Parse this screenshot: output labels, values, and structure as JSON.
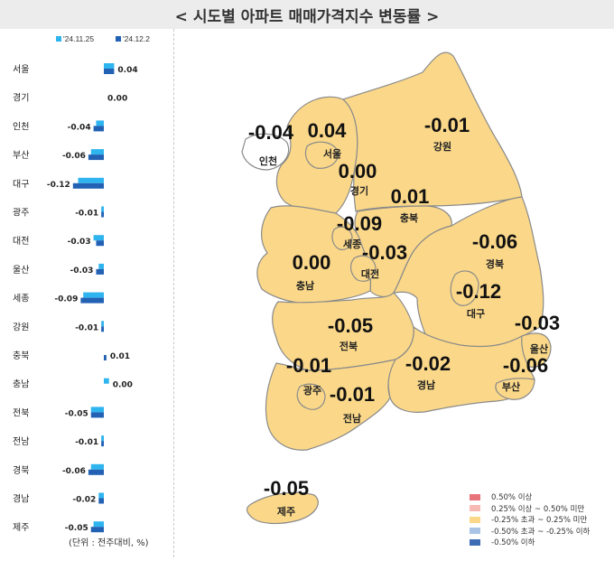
{
  "title": "< 시도별 아파트 매매가격지수 변동률 >",
  "unit_note": "(단위 : 전주대비, %)",
  "colors": {
    "prev": "#2eb4ee",
    "curr": "#2261b4",
    "region_fill": "#fbd889",
    "region_stroke": "#8a8a8a",
    "incheon_fill": "#ffffff"
  },
  "chart_data": {
    "type": "bar",
    "orientation": "horizontal",
    "series": [
      {
        "name": "'24.11.25",
        "values": [
          0.04,
          0.0,
          -0.03,
          -0.05,
          -0.1,
          -0.01,
          -0.04,
          -0.02,
          -0.08,
          -0.01,
          0.0,
          0.02,
          -0.05,
          -0.01,
          -0.05,
          -0.02,
          -0.04
        ]
      },
      {
        "name": "'24.12.2",
        "values": [
          0.04,
          0.0,
          -0.04,
          -0.06,
          -0.12,
          -0.01,
          -0.03,
          -0.03,
          -0.09,
          -0.01,
          0.01,
          0.0,
          -0.05,
          -0.01,
          -0.06,
          -0.02,
          -0.05
        ]
      }
    ],
    "categories": [
      "서울",
      "경기",
      "인천",
      "부산",
      "대구",
      "광주",
      "대전",
      "울산",
      "세종",
      "강원",
      "충북",
      "충남",
      "전북",
      "전남",
      "경북",
      "경남",
      "제주"
    ],
    "data_labels": [
      "0.04",
      "0.00",
      "-0.04",
      "-0.06",
      "-0.12",
      "-0.01",
      "-0.03",
      "-0.03",
      "-0.09",
      "-0.01",
      "0.01",
      "0.00",
      "-0.05",
      "-0.01",
      "-0.06",
      "-0.02",
      "-0.05"
    ]
  },
  "map_labels": [
    {
      "region": "인천",
      "value": "-0.04"
    },
    {
      "region": "서울",
      "value": "0.04"
    },
    {
      "region": "경기",
      "value": "0.00"
    },
    {
      "region": "강원",
      "value": "-0.01"
    },
    {
      "region": "충북",
      "value": "0.01"
    },
    {
      "region": "세종",
      "value": "-0.09"
    },
    {
      "region": "대전",
      "value": "-0.03"
    },
    {
      "region": "충남",
      "value": "0.00"
    },
    {
      "region": "경북",
      "value": "-0.06"
    },
    {
      "region": "대구",
      "value": "-0.12"
    },
    {
      "region": "전북",
      "value": "-0.05"
    },
    {
      "region": "울산",
      "value": "-0.03"
    },
    {
      "region": "광주",
      "value": "-0.01"
    },
    {
      "region": "경남",
      "value": "-0.02"
    },
    {
      "region": "부산",
      "value": "-0.06"
    },
    {
      "region": "전남",
      "value": "-0.01"
    },
    {
      "region": "제주",
      "value": "-0.05"
    }
  ],
  "legend": [
    {
      "label": "0.50% 이상",
      "color": "#e8737a"
    },
    {
      "label": "0.25% 이상 ~ 0.50% 미만",
      "color": "#f6b9b4"
    },
    {
      "label": "-0.25% 초과 ~ 0.25% 미만",
      "color": "#fbd889"
    },
    {
      "label": "-0.50% 초과 ~ -0.25% 이하",
      "color": "#a9c4e4"
    },
    {
      "label": "-0.50% 이하",
      "color": "#3f6db5"
    }
  ]
}
